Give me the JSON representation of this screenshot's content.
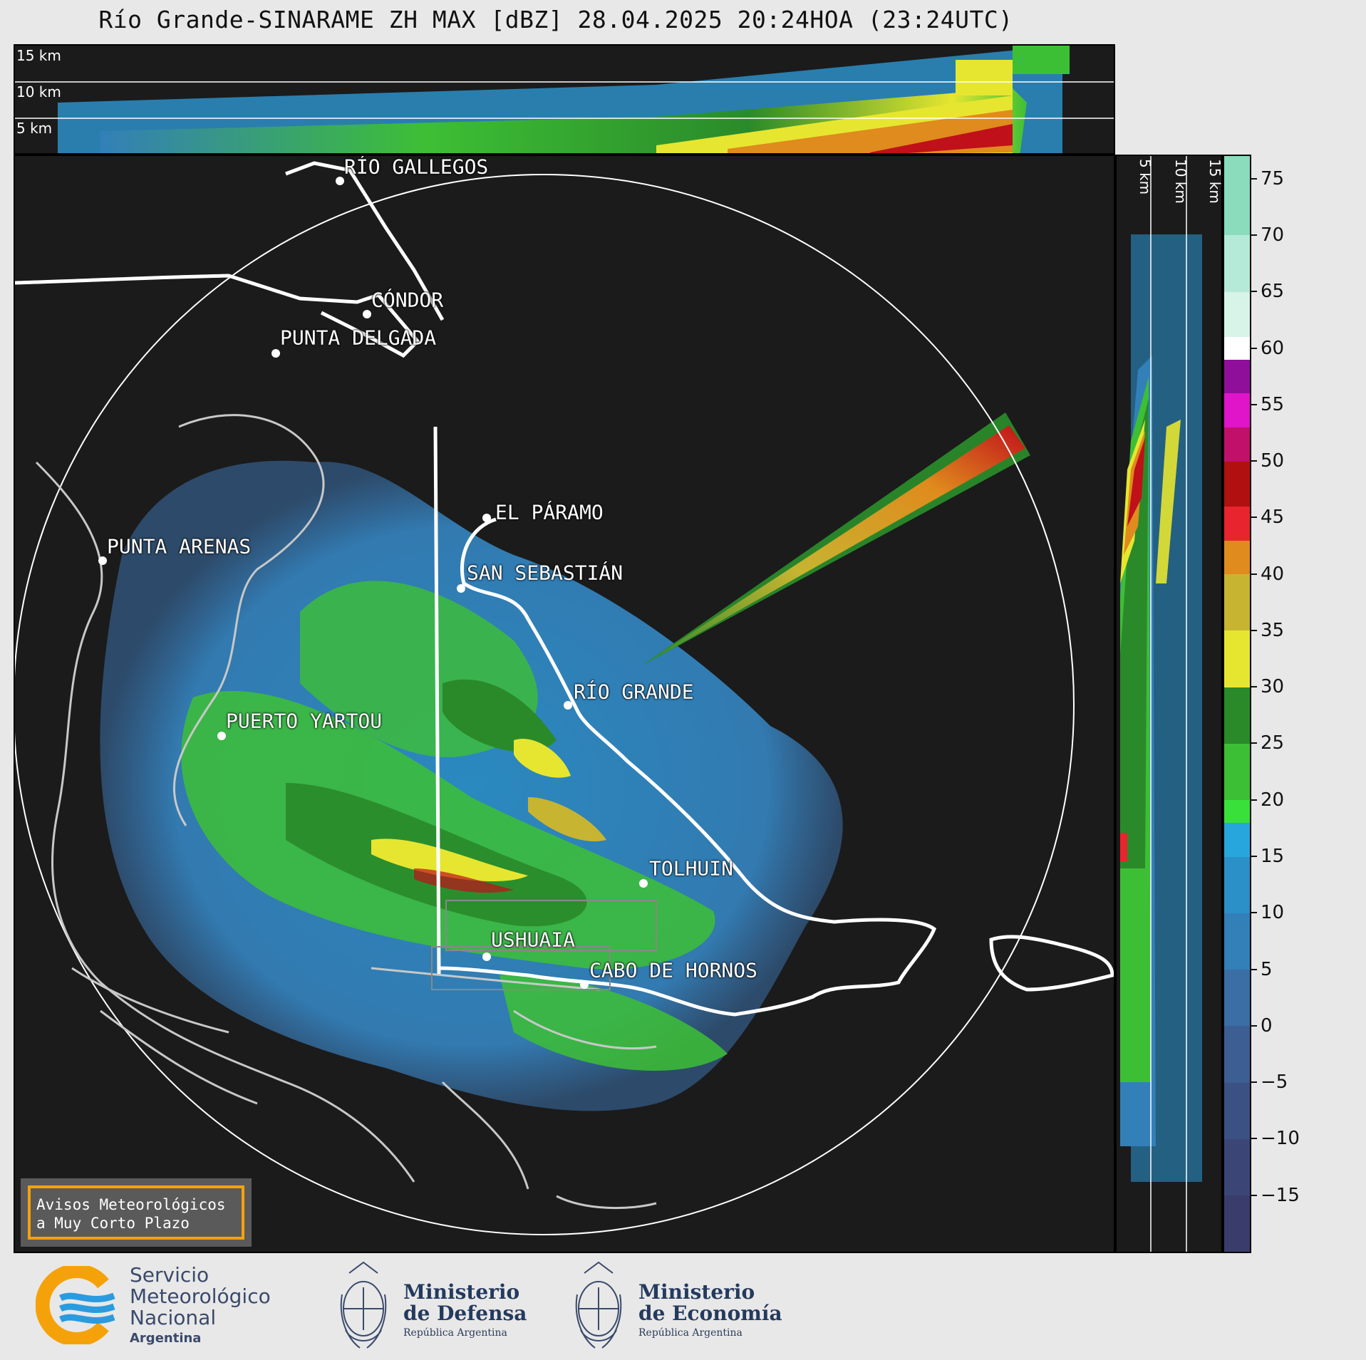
{
  "title": "Río Grande-SINARAME ZH MAX [dBZ] 28.04.2025 20:24HOA (23:24UTC)",
  "top_panel": {
    "altitude_labels": [
      "15 km",
      "10 km",
      "5 km"
    ]
  },
  "side_panel": {
    "altitude_labels": [
      "5 km",
      "10 km",
      "15 km"
    ]
  },
  "map": {
    "cities": [
      {
        "name": "RÍO GALLEGOS"
      },
      {
        "name": "CÓNDOR"
      },
      {
        "name": "PUNTA DELGADA"
      },
      {
        "name": "PUNTA ARENAS"
      },
      {
        "name": "EL PÁRAMO"
      },
      {
        "name": "SAN SEBASTIÁN"
      },
      {
        "name": "RÍO GRANDE"
      },
      {
        "name": "PUERTO YARTOU"
      },
      {
        "name": "TOLHUIN"
      },
      {
        "name": "USHUAIA"
      },
      {
        "name": "CABO DE HORNOS"
      }
    ],
    "warning_box": {
      "line1": "Avisos Meteorológicos",
      "line2": "a Muy Corto Plazo"
    },
    "colors": {
      "background": "#1b1b1b",
      "coast": "#c8c8c8",
      "border": "#ffffff",
      "warning_border": "#f5a20a"
    }
  },
  "colorbar": {
    "unit": "dBZ",
    "ticks": [
      "75",
      "70",
      "65",
      "60",
      "55",
      "50",
      "45",
      "40",
      "35",
      "30",
      "25",
      "20",
      "15",
      "10",
      "5",
      "0",
      "−5",
      "−10",
      "−15"
    ],
    "range": [
      -20,
      77
    ],
    "bands": [
      {
        "from": -20,
        "to": -15,
        "color": "#3a3d6b"
      },
      {
        "from": -15,
        "to": -10,
        "color": "#3b4677"
      },
      {
        "from": -10,
        "to": -5,
        "color": "#3c5183"
      },
      {
        "from": -5,
        "to": 0,
        "color": "#3c5e93"
      },
      {
        "from": 0,
        "to": 5,
        "color": "#3a6ea5"
      },
      {
        "from": 5,
        "to": 10,
        "color": "#337fb8"
      },
      {
        "from": 10,
        "to": 15,
        "color": "#2b8fc8"
      },
      {
        "from": 15,
        "to": 18,
        "color": "#27a6dd"
      },
      {
        "from": 18,
        "to": 20,
        "color": "#39e03a"
      },
      {
        "from": 20,
        "to": 25,
        "color": "#3dbf35"
      },
      {
        "from": 25,
        "to": 30,
        "color": "#2a8a2a"
      },
      {
        "from": 30,
        "to": 35,
        "color": "#e6e630"
      },
      {
        "from": 35,
        "to": 40,
        "color": "#c7b431"
      },
      {
        "from": 40,
        "to": 43,
        "color": "#df8b1d"
      },
      {
        "from": 43,
        "to": 46,
        "color": "#e8242f"
      },
      {
        "from": 46,
        "to": 50,
        "color": "#b01010"
      },
      {
        "from": 50,
        "to": 53,
        "color": "#c0106a"
      },
      {
        "from": 53,
        "to": 56,
        "color": "#e014c8"
      },
      {
        "from": 56,
        "to": 59,
        "color": "#8f0f9a"
      },
      {
        "from": 59,
        "to": 61,
        "color": "#ffffff"
      },
      {
        "from": 61,
        "to": 65,
        "color": "#d8f3e8"
      },
      {
        "from": 65,
        "to": 70,
        "color": "#b5ead8"
      },
      {
        "from": 70,
        "to": 77,
        "color": "#8adcbc"
      }
    ]
  },
  "footer": {
    "smn": {
      "line1": "Servicio",
      "line2": "Meteorológico",
      "line3": "Nacional",
      "line4": "Argentina"
    },
    "defensa": {
      "line1": "Ministerio",
      "line2": "de Defensa",
      "sub": "República Argentina"
    },
    "economia": {
      "line1": "Ministerio",
      "line2": "de Economía",
      "sub": "República Argentina"
    }
  }
}
